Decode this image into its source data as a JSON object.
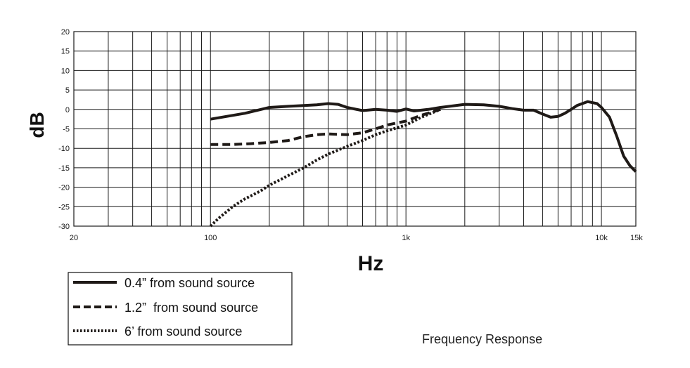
{
  "chart_data": {
    "type": "line",
    "title": "Frequency Response",
    "xlabel": "Hz",
    "ylabel": "dB",
    "x_scale": "log",
    "xlim": [
      20,
      15000
    ],
    "ylim": [
      -30,
      20
    ],
    "grid": true,
    "legend_placement": "bottom-left",
    "x_tick_values": [
      20,
      100,
      1000,
      10000,
      15000
    ],
    "x_tick_labels": [
      "20",
      "100",
      "1k",
      "10k",
      "15k"
    ],
    "y_tick_values": [
      20,
      15,
      10,
      5,
      0,
      -5,
      -10,
      -15,
      -20,
      -25,
      -30
    ],
    "y_tick_labels": [
      "20",
      "15",
      "10",
      "5",
      "0",
      "-5",
      "-10",
      "-15",
      "-20",
      "-25",
      "-30"
    ],
    "series": [
      {
        "name": "0.4” from sound source",
        "style": "solid",
        "points": [
          [
            100,
            -2.5
          ],
          [
            150,
            -1
          ],
          [
            200,
            0.5
          ],
          [
            250,
            0.8
          ],
          [
            300,
            1
          ],
          [
            350,
            1.2
          ],
          [
            400,
            1.5
          ],
          [
            450,
            1.3
          ],
          [
            500,
            0.5
          ],
          [
            600,
            -0.3
          ],
          [
            700,
            0
          ],
          [
            800,
            -0.2
          ],
          [
            900,
            -0.5
          ],
          [
            1000,
            0.1
          ],
          [
            1100,
            -0.4
          ],
          [
            1300,
            0
          ],
          [
            1500,
            0.5
          ],
          [
            2000,
            1.3
          ],
          [
            2500,
            1.2
          ],
          [
            3000,
            0.8
          ],
          [
            3500,
            0.2
          ],
          [
            4000,
            -0.2
          ],
          [
            4500,
            -0.2
          ],
          [
            5000,
            -1.2
          ],
          [
            5500,
            -2
          ],
          [
            6000,
            -1.8
          ],
          [
            6500,
            -1
          ],
          [
            7000,
            0
          ],
          [
            7500,
            1
          ],
          [
            8500,
            2
          ],
          [
            9500,
            1.5
          ],
          [
            10000,
            0.5
          ],
          [
            11000,
            -2
          ],
          [
            12000,
            -7
          ],
          [
            13000,
            -12
          ],
          [
            14000,
            -14.5
          ],
          [
            15000,
            -16
          ]
        ]
      },
      {
        "name": "1.2”  from sound source",
        "style": "dashed",
        "points": [
          [
            100,
            -9
          ],
          [
            130,
            -9
          ],
          [
            160,
            -8.8
          ],
          [
            200,
            -8.5
          ],
          [
            250,
            -8
          ],
          [
            300,
            -7
          ],
          [
            350,
            -6.5
          ],
          [
            400,
            -6.3
          ],
          [
            500,
            -6.5
          ],
          [
            600,
            -6
          ],
          [
            700,
            -5
          ],
          [
            800,
            -4
          ],
          [
            1000,
            -3
          ],
          [
            1200,
            -1.5
          ],
          [
            1500,
            0
          ]
        ]
      },
      {
        "name": "6’ from sound source",
        "style": "dotted",
        "points": [
          [
            100,
            -31
          ],
          [
            110,
            -28
          ],
          [
            130,
            -25
          ],
          [
            150,
            -23
          ],
          [
            180,
            -21
          ],
          [
            200,
            -19.5
          ],
          [
            250,
            -17
          ],
          [
            300,
            -15
          ],
          [
            350,
            -13
          ],
          [
            400,
            -11.5
          ],
          [
            500,
            -9.5
          ],
          [
            600,
            -8
          ],
          [
            700,
            -6.5
          ],
          [
            800,
            -5.5
          ],
          [
            1000,
            -4
          ],
          [
            1200,
            -2
          ],
          [
            1500,
            0
          ]
        ]
      }
    ]
  }
}
